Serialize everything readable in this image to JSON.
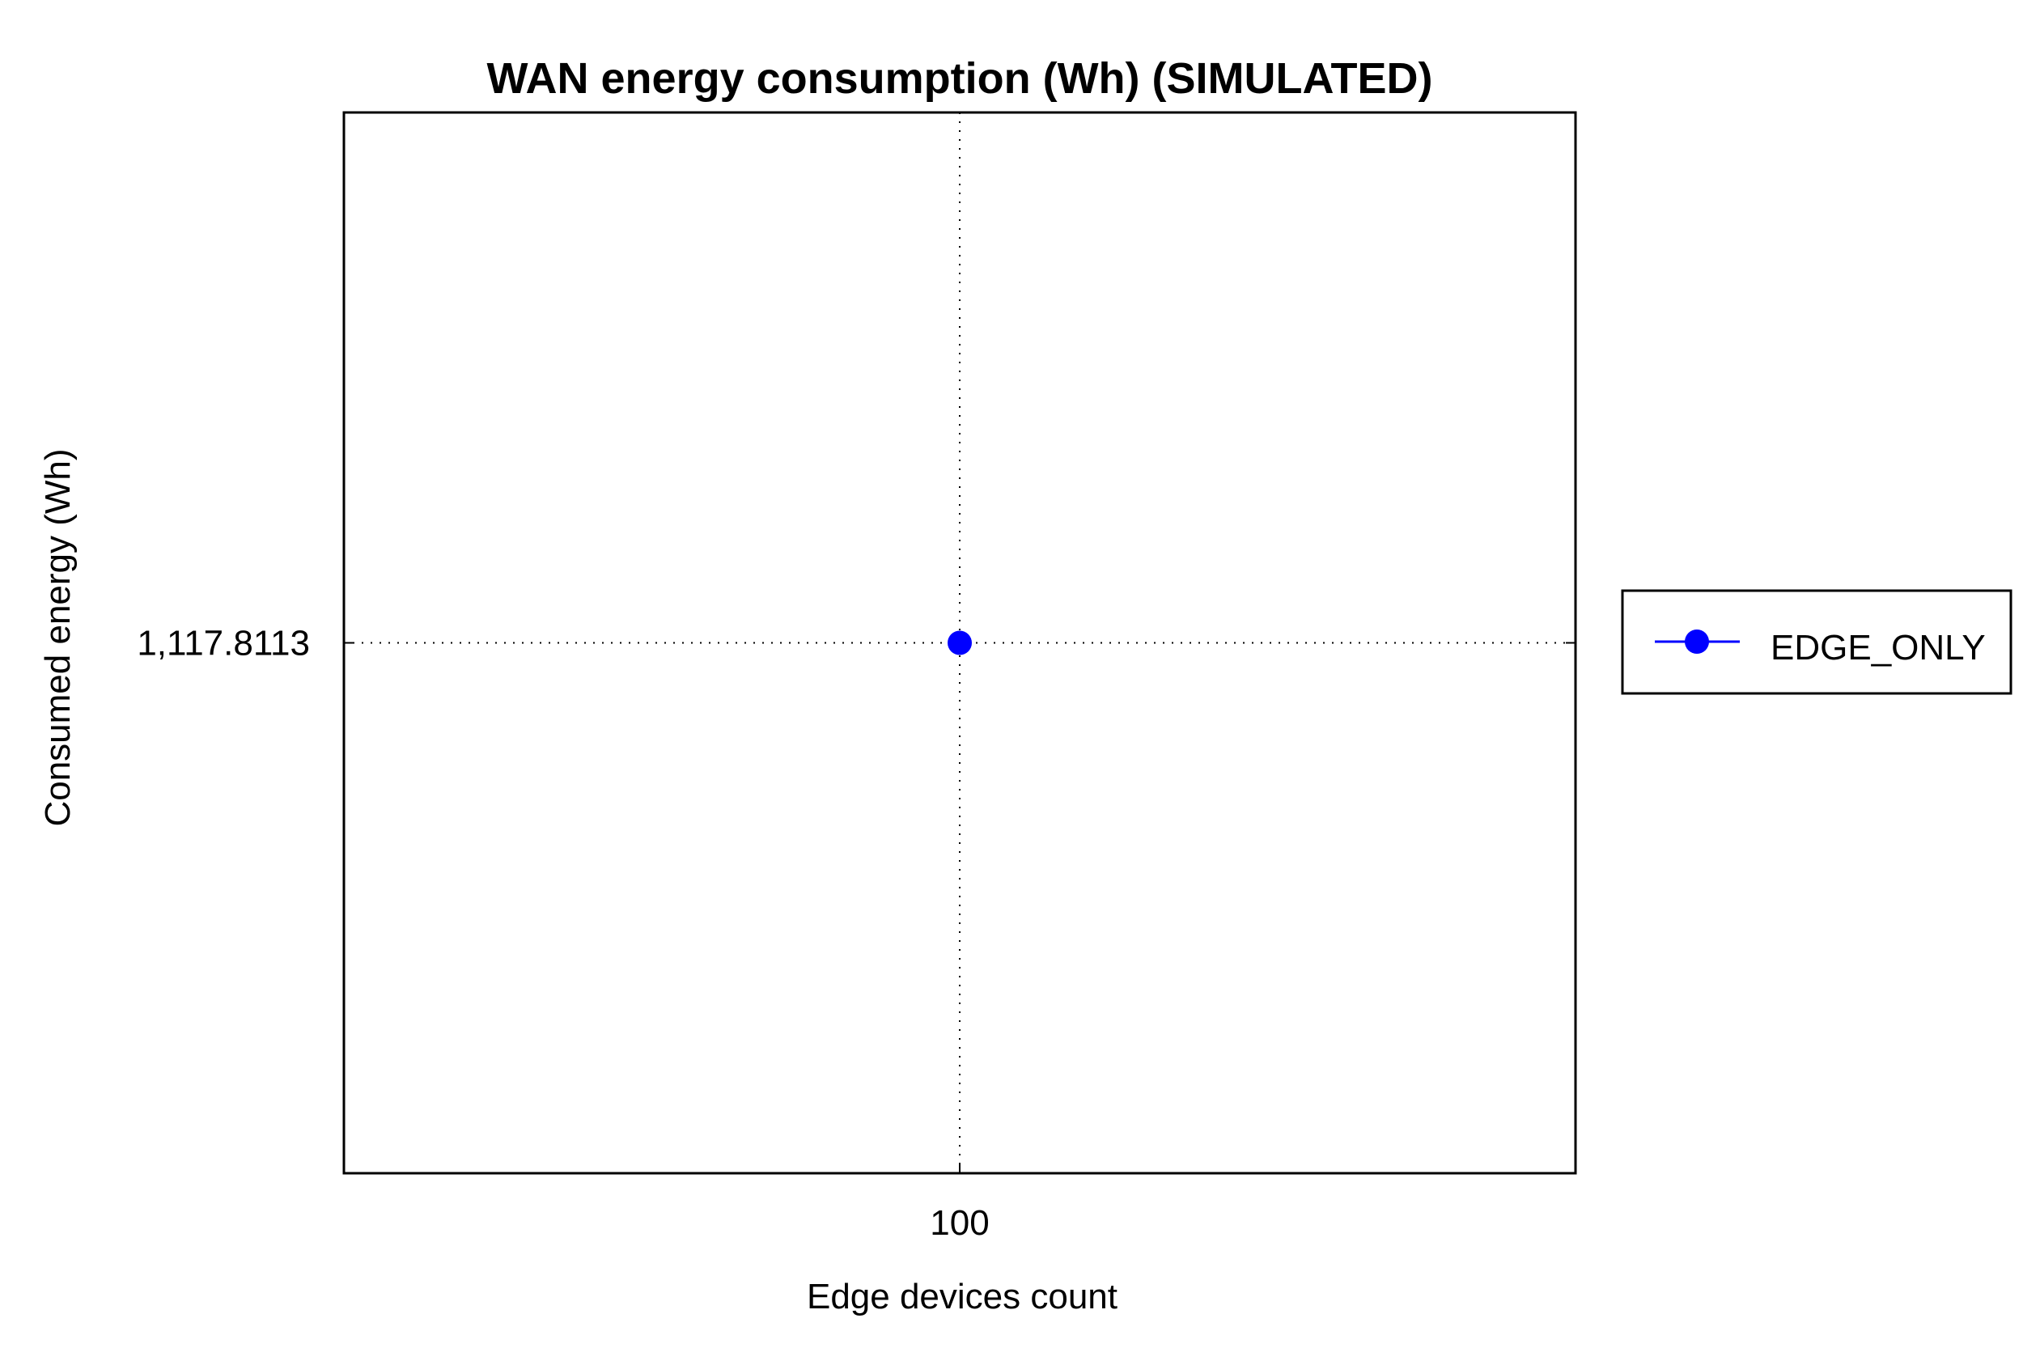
{
  "chart_data": {
    "type": "line",
    "title": "WAN energy consumption (Wh) (SIMULATED)",
    "xlabel": "Edge devices count",
    "ylabel": "Consumed energy (Wh)",
    "x": [
      100
    ],
    "x_tick_labels": [
      "100"
    ],
    "y_tick_labels": [
      "1,117.8113"
    ],
    "series": [
      {
        "name": "EDGE_ONLY",
        "color": "#0000ff",
        "marker": "circle",
        "x": [
          100
        ],
        "y": [
          1117.8113
        ]
      }
    ],
    "grid": true,
    "grid_style": "dotted",
    "legend_position": "right"
  }
}
